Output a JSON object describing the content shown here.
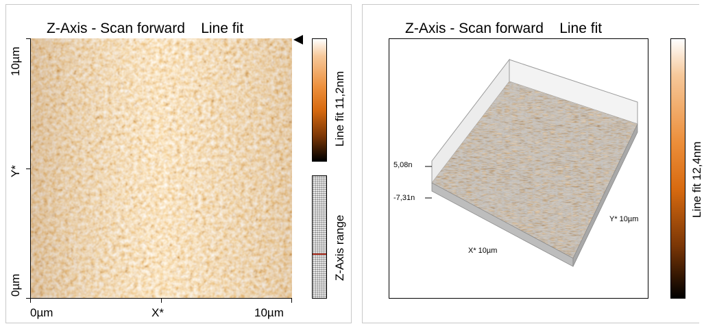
{
  "left_panel": {
    "title": "Z-Axis - Scan forward    Line fit",
    "y_label": "Y*",
    "x_label": "X*",
    "y_max_label": "10µm",
    "y_min_label": "0µm",
    "x_min_label": "0µm",
    "x_max_label": "10µm",
    "colorbar_label": "Line fit 11,2nm",
    "range_label": "Z-Axis range",
    "marker_icon": "triangle-left-icon"
  },
  "right_panel": {
    "title": "Z-Axis - Scan forward    Line fit",
    "z_max_label": "5,08n",
    "z_min_label": "-7,31n",
    "x_axis_label": "X* 10µm",
    "y_axis_label": "Y* 10µm",
    "colorbar_label": "Line fit 12,4nm"
  },
  "colors": {
    "accent_orange": "#d76a10",
    "dark_brown": "#3a1500",
    "range_marker": "#b03020"
  }
}
